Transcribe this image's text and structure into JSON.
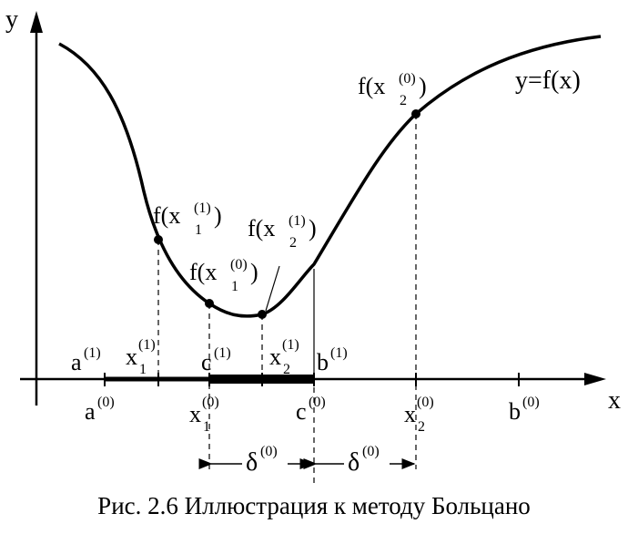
{
  "axes": {
    "y_label": "y",
    "x_label": "x"
  },
  "curve": {
    "label": "y=f(x)"
  },
  "points": {
    "f_x1_1": {
      "base": "f(x",
      "sup": "(1)",
      "sub": "1",
      "close": ")"
    },
    "f_x1_0": {
      "base": "f(x",
      "sup": "(0)",
      "sub": "1",
      "close": ")"
    },
    "f_x2_1": {
      "base": "f(x",
      "sup": "(1)",
      "sub": "2",
      "close": ")"
    },
    "f_x2_0": {
      "base": "f(x",
      "sup": "(0)",
      "sub": "2",
      "close": ")"
    }
  },
  "above_axis": {
    "a1": {
      "base": "a",
      "sup": "(1)"
    },
    "x1_1": {
      "base": "x",
      "sub": "1",
      "sup": "(1)"
    },
    "c1": {
      "base": "c",
      "sup": "(1)"
    },
    "x2_1": {
      "base": "x",
      "sub": "2",
      "sup": "(1)"
    },
    "b1": {
      "base": "b",
      "sup": "(1)"
    }
  },
  "below_axis": {
    "a0": {
      "base": "a",
      "sup": "(0)"
    },
    "x1_0": {
      "base": "x",
      "sub": "1",
      "sup": "(0)"
    },
    "c0": {
      "base": "c",
      "sup": "(0)"
    },
    "x2_0": {
      "base": "x",
      "sub": "2",
      "sup": "(0)"
    },
    "b0": {
      "base": "b",
      "sup": "(0)"
    }
  },
  "deltas": {
    "left": {
      "base": "δ",
      "sup": "(0)"
    },
    "right": {
      "base": "δ",
      "sup": "(0)"
    }
  },
  "caption": "Рис. 2.6 Иллюстрация к методу Больцано"
}
